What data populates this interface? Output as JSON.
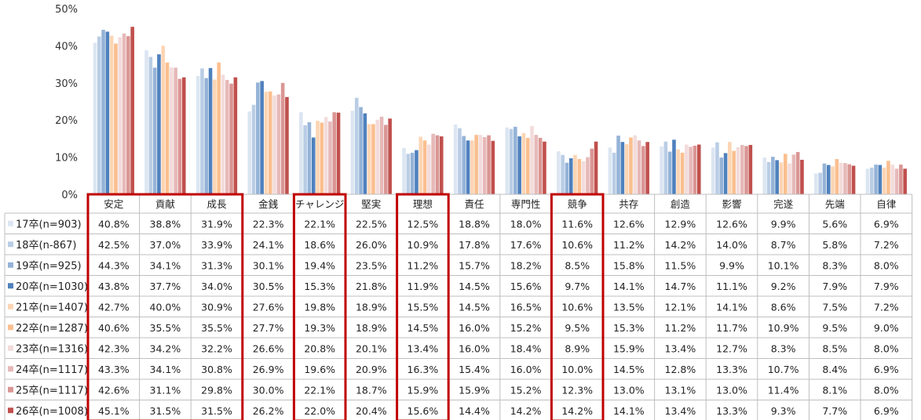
{
  "chart_data": {
    "type": "bar",
    "categories": [
      "安定",
      "貢献",
      "成長",
      "金銭",
      "チャレンジ",
      "堅実",
      "理想",
      "責任",
      "専門性",
      "競争",
      "共存",
      "創造",
      "影響",
      "完遂",
      "先端",
      "自律"
    ],
    "ylim": [
      0,
      50
    ],
    "yticks": [
      "0%",
      "10%",
      "20%",
      "30%",
      "40%",
      "50%"
    ],
    "grid": false,
    "series": [
      {
        "name": "17卒(n=903)",
        "color": "#dce6f2",
        "values": [
          40.8,
          38.8,
          31.9,
          22.3,
          22.1,
          22.5,
          12.5,
          18.8,
          18.0,
          11.6,
          12.6,
          12.9,
          12.6,
          9.9,
          5.6,
          6.9
        ]
      },
      {
        "name": "18卒(n-867)",
        "color": "#b9cde5",
        "values": [
          42.5,
          37.0,
          33.9,
          24.1,
          18.6,
          26.0,
          10.9,
          17.8,
          17.6,
          10.6,
          11.2,
          14.2,
          14.0,
          8.7,
          5.8,
          7.2
        ]
      },
      {
        "name": "19卒(n=925)",
        "color": "#95b3d7",
        "values": [
          44.3,
          34.1,
          31.3,
          30.1,
          19.4,
          23.5,
          11.2,
          15.7,
          18.2,
          8.5,
          15.8,
          11.5,
          9.9,
          10.1,
          8.3,
          8.0
        ]
      },
      {
        "name": "20卒(n=1030)",
        "color": "#4f81bd",
        "values": [
          43.8,
          37.7,
          34.0,
          30.5,
          15.3,
          21.8,
          11.9,
          14.5,
          15.6,
          9.7,
          14.1,
          14.7,
          11.1,
          9.2,
          7.9,
          7.9
        ]
      },
      {
        "name": "21卒(n=1407)",
        "color": "#fcd5b4",
        "values": [
          42.7,
          40.0,
          30.9,
          27.6,
          19.8,
          18.9,
          15.5,
          14.5,
          16.5,
          10.6,
          13.5,
          12.1,
          14.1,
          8.6,
          7.5,
          7.2
        ]
      },
      {
        "name": "22卒(n=1287)",
        "color": "#fabf8f",
        "values": [
          40.6,
          35.5,
          35.5,
          27.7,
          19.3,
          18.9,
          14.5,
          16.0,
          15.2,
          9.5,
          15.3,
          11.2,
          11.7,
          10.9,
          9.5,
          9.0
        ]
      },
      {
        "name": "23卒(n=1316)",
        "color": "#f2dcdb",
        "values": [
          42.3,
          34.2,
          32.2,
          26.6,
          20.8,
          20.1,
          13.4,
          16.0,
          18.4,
          8.9,
          15.9,
          13.4,
          12.7,
          8.3,
          8.5,
          8.0
        ]
      },
      {
        "name": "24卒(n=1117)",
        "color": "#e6b9b8",
        "values": [
          43.3,
          34.1,
          30.8,
          26.9,
          19.6,
          20.9,
          16.3,
          15.4,
          16.0,
          10.0,
          14.5,
          12.8,
          13.3,
          10.7,
          8.4,
          6.9
        ]
      },
      {
        "name": "25卒(n=1117)",
        "color": "#da9694",
        "values": [
          42.6,
          31.1,
          29.8,
          30.0,
          22.1,
          18.7,
          15.9,
          15.9,
          15.2,
          12.3,
          13.0,
          13.1,
          13.0,
          11.4,
          8.1,
          8.0
        ]
      },
      {
        "name": "26卒(n=1008)",
        "color": "#c0504d",
        "values": [
          45.1,
          31.5,
          31.5,
          26.2,
          22.0,
          20.4,
          15.6,
          14.4,
          14.2,
          14.2,
          14.1,
          13.4,
          13.3,
          9.3,
          7.7,
          6.9
        ]
      }
    ],
    "highlight_categories": [
      "安定",
      "貢献",
      "成長",
      "チャレンジ",
      "理想",
      "競争"
    ],
    "highlight_color": "#c00000"
  }
}
